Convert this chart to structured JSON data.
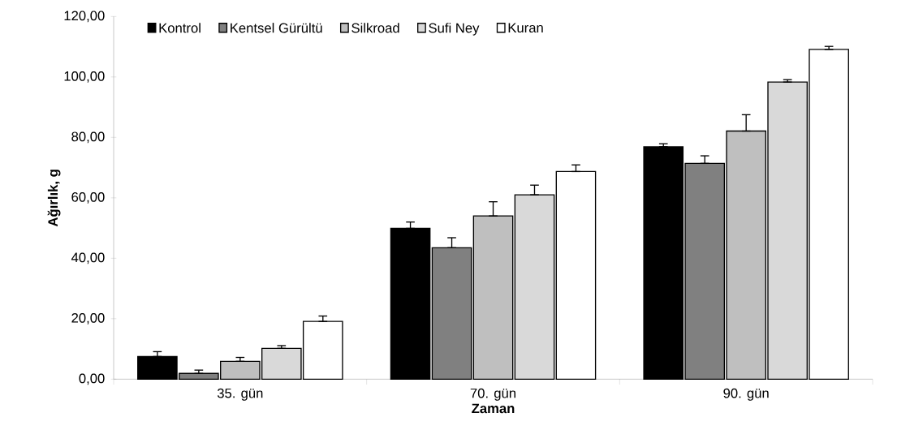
{
  "chart_data": {
    "type": "bar",
    "xlabel": "Zaman",
    "ylabel": "Ağırlık, g",
    "categories": [
      "35. gün",
      "70. gün",
      "90. gün"
    ],
    "series": [
      {
        "name": "Kontrol",
        "color": "#000000",
        "values": [
          7.5,
          49.9,
          76.9
        ],
        "errors": [
          [
            7.5,
            9.1
          ],
          [
            49.9,
            52.0
          ],
          [
            76.9,
            77.9
          ]
        ]
      },
      {
        "name": "Kentsel Gürültü",
        "color": "#808080",
        "values": [
          1.9,
          43.5,
          71.4
        ],
        "errors": [
          [
            1.9,
            3.0
          ],
          [
            43.5,
            46.8
          ],
          [
            71.4,
            73.9
          ]
        ]
      },
      {
        "name": "Silkroad",
        "color": "#bfbfbf",
        "values": [
          5.9,
          54.0,
          82.1
        ],
        "errors": [
          [
            5.9,
            7.2
          ],
          [
            54.0,
            58.7
          ],
          [
            82.1,
            87.5
          ]
        ]
      },
      {
        "name": "Sufi Ney",
        "color": "#d9d9d9",
        "values": [
          10.2,
          61.0,
          98.3
        ],
        "errors": [
          [
            10.2,
            11.1
          ],
          [
            61.0,
            64.2
          ],
          [
            98.3,
            99.1
          ]
        ]
      },
      {
        "name": "Kuran",
        "color": "#ffffff",
        "values": [
          19.1,
          68.7,
          109.1
        ],
        "errors": [
          [
            19.1,
            20.9
          ],
          [
            68.7,
            70.9
          ],
          [
            109.1,
            110.1
          ]
        ]
      }
    ],
    "ylim": [
      0,
      120
    ],
    "yticks": [
      {
        "value": 0,
        "label": "0,00"
      },
      {
        "value": 20,
        "label": "20,00"
      },
      {
        "value": 40,
        "label": "40,00"
      },
      {
        "value": 60,
        "label": "60,00"
      },
      {
        "value": 80,
        "label": "80,00"
      },
      {
        "value": 100,
        "label": "100,00"
      },
      {
        "value": 120,
        "label": "120,00"
      }
    ],
    "grid": false,
    "legend": "top"
  }
}
